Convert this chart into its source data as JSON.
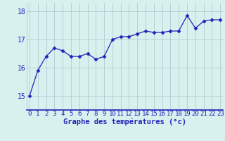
{
  "x": [
    0,
    1,
    2,
    3,
    4,
    5,
    6,
    7,
    8,
    9,
    10,
    11,
    12,
    13,
    14,
    15,
    16,
    17,
    18,
    19,
    20,
    21,
    22,
    23
  ],
  "y": [
    15.0,
    15.9,
    16.4,
    16.7,
    16.6,
    16.4,
    16.4,
    16.5,
    16.3,
    16.4,
    17.0,
    17.1,
    17.1,
    17.2,
    17.3,
    17.25,
    17.25,
    17.3,
    17.3,
    17.85,
    17.4,
    17.65,
    17.7,
    17.7
  ],
  "line_color": "#2222bb",
  "marker": "D",
  "marker_size": 2.5,
  "bg_color": "#d8f0ee",
  "grid_color": "#aac4cc",
  "xlabel": "Graphe des températures (°c)",
  "xlabel_color": "#2222bb",
  "xlabel_fontsize": 7.5,
  "tick_color": "#2222bb",
  "tick_fontsize": 6.5,
  "ylim": [
    14.5,
    18.3
  ],
  "yticks": [
    15,
    16,
    17,
    18
  ],
  "xlim": [
    -0.3,
    23.3
  ]
}
